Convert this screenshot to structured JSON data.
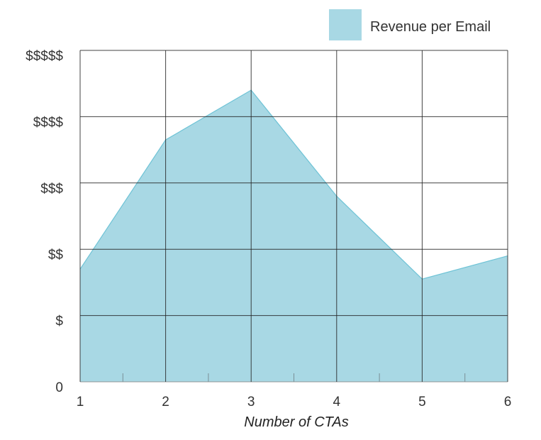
{
  "chart_data": {
    "type": "area",
    "xlabel": "Number of CTAs",
    "ylabel": "",
    "x": [
      1,
      2,
      3,
      4,
      5,
      6
    ],
    "x_tick_labels": [
      "1",
      "2",
      "3",
      "4",
      "5",
      "6"
    ],
    "y_tick_labels": [
      "0",
      "$",
      "$$",
      "$$$",
      "$$$$",
      "$$$$$"
    ],
    "ylim": [
      0,
      5
    ],
    "grid": true,
    "legend_position": "top-right",
    "series": [
      {
        "name": "Revenue per Email",
        "values": [
          1.7,
          3.65,
          4.4,
          2.8,
          1.55,
          1.9
        ],
        "color": "#a8d8e4",
        "edge_color": "#6ec3d6"
      }
    ]
  }
}
